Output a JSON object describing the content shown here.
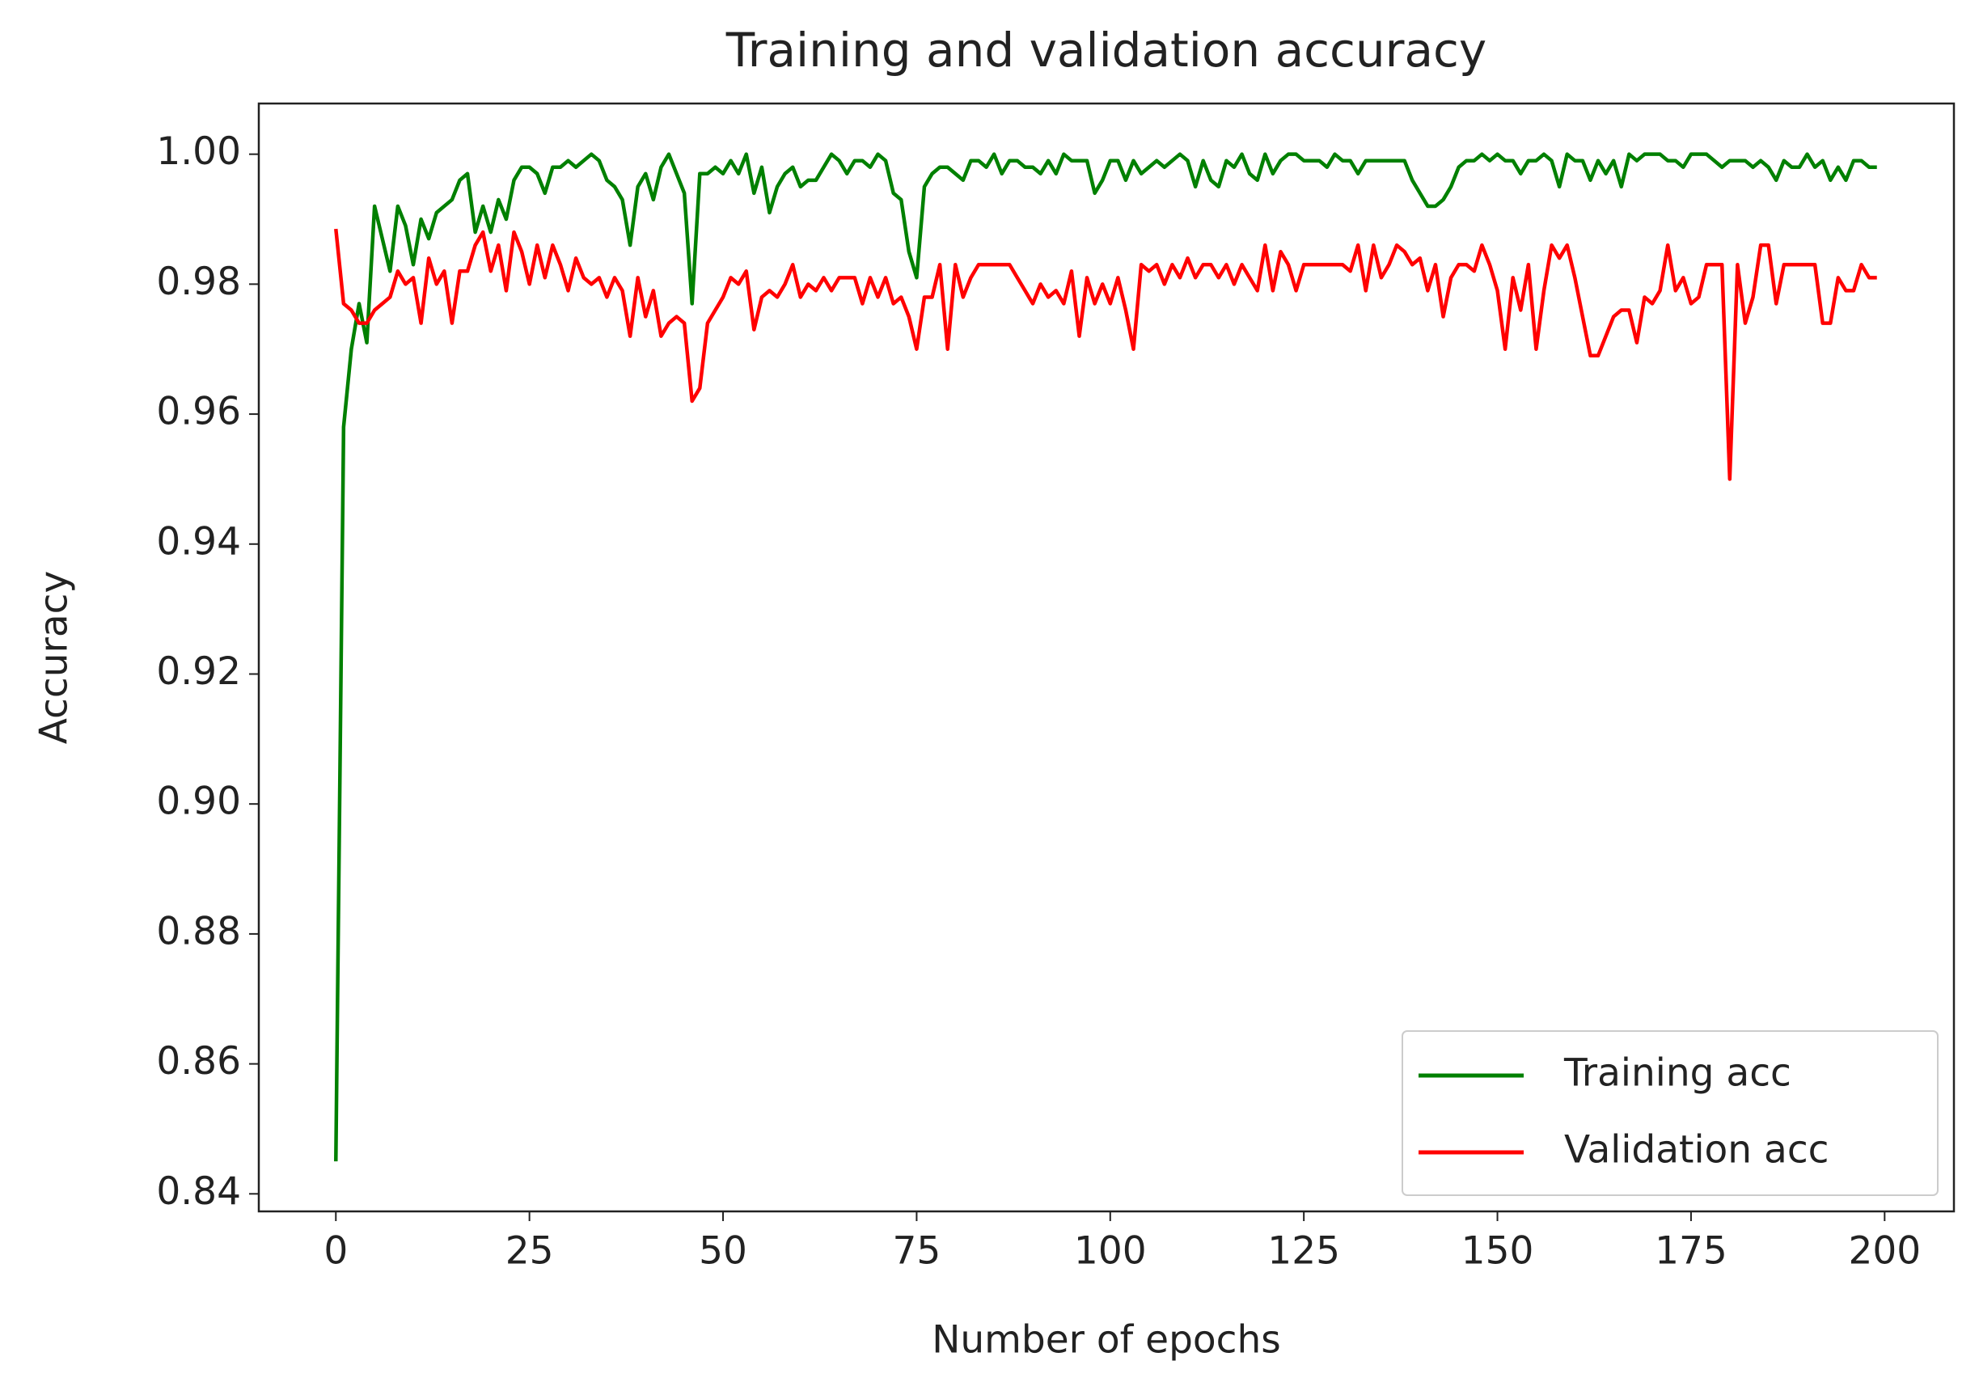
{
  "chart_data": {
    "type": "line",
    "title": "Training and validation accuracy",
    "x_label": "Number of epochs",
    "y_label": "Accuracy",
    "x": [
      0,
      1,
      2,
      3,
      4,
      5,
      6,
      7,
      8,
      9,
      10,
      11,
      12,
      13,
      14,
      15,
      16,
      17,
      18,
      19,
      20,
      21,
      22,
      23,
      24,
      25,
      26,
      27,
      28,
      29,
      30,
      31,
      32,
      33,
      34,
      35,
      36,
      37,
      38,
      39,
      40,
      41,
      42,
      43,
      44,
      45,
      46,
      47,
      48,
      49,
      50,
      51,
      52,
      53,
      54,
      55,
      56,
      57,
      58,
      59,
      60,
      61,
      62,
      63,
      64,
      65,
      66,
      67,
      68,
      69,
      70,
      71,
      72,
      73,
      74,
      75,
      76,
      77,
      78,
      79,
      80,
      81,
      82,
      83,
      84,
      85,
      86,
      87,
      88,
      89,
      90,
      91,
      92,
      93,
      94,
      95,
      96,
      97,
      98,
      99,
      100,
      101,
      102,
      103,
      104,
      105,
      106,
      107,
      108,
      109,
      110,
      111,
      112,
      113,
      114,
      115,
      116,
      117,
      118,
      119,
      120,
      121,
      122,
      123,
      124,
      125,
      126,
      127,
      128,
      129,
      130,
      131,
      132,
      133,
      134,
      135,
      136,
      137,
      138,
      139,
      140,
      141,
      142,
      143,
      144,
      145,
      146,
      147,
      148,
      149,
      150,
      151,
      152,
      153,
      154,
      155,
      156,
      157,
      158,
      159,
      160,
      161,
      162,
      163,
      164,
      165,
      166,
      167,
      168,
      169,
      170,
      171,
      172,
      173,
      174,
      175,
      176,
      177,
      178,
      179,
      180,
      181,
      182,
      183,
      184,
      185,
      186,
      187,
      188,
      189,
      190,
      191,
      192,
      193,
      194,
      195,
      196,
      197,
      198,
      199
    ],
    "series": [
      {
        "name": "Training acc",
        "color": "#008000",
        "values": [
          0.845,
          0.958,
          0.97,
          0.977,
          0.971,
          0.992,
          0.987,
          0.982,
          0.992,
          0.989,
          0.983,
          0.99,
          0.987,
          0.991,
          0.992,
          0.993,
          0.996,
          0.997,
          0.988,
          0.992,
          0.988,
          0.993,
          0.99,
          0.996,
          0.998,
          0.998,
          0.997,
          0.994,
          0.998,
          0.998,
          0.999,
          0.998,
          0.999,
          1.0,
          0.999,
          0.996,
          0.995,
          0.993,
          0.986,
          0.995,
          0.997,
          0.993,
          0.998,
          1.0,
          0.997,
          0.994,
          0.977,
          0.997,
          0.997,
          0.998,
          0.997,
          0.999,
          0.997,
          1.0,
          0.994,
          0.998,
          0.991,
          0.995,
          0.997,
          0.998,
          0.995,
          0.996,
          0.996,
          0.998,
          1.0,
          0.999,
          0.997,
          0.999,
          0.999,
          0.998,
          1.0,
          0.999,
          0.994,
          0.993,
          0.985,
          0.981,
          0.995,
          0.997,
          0.998,
          0.998,
          0.997,
          0.996,
          0.999,
          0.999,
          0.998,
          1.0,
          0.997,
          0.999,
          0.999,
          0.998,
          0.998,
          0.997,
          0.999,
          0.997,
          1.0,
          0.999,
          0.999,
          0.999,
          0.994,
          0.996,
          0.999,
          0.999,
          0.996,
          0.999,
          0.997,
          0.998,
          0.999,
          0.998,
          0.999,
          1.0,
          0.999,
          0.995,
          0.999,
          0.996,
          0.995,
          0.999,
          0.998,
          1.0,
          0.997,
          0.996,
          1.0,
          0.997,
          0.999,
          1.0,
          1.0,
          0.999,
          0.999,
          0.999,
          0.998,
          1.0,
          0.999,
          0.999,
          0.997,
          0.999,
          0.999,
          0.999,
          0.999,
          0.999,
          0.999,
          0.996,
          0.994,
          0.992,
          0.992,
          0.993,
          0.995,
          0.998,
          0.999,
          0.999,
          1.0,
          0.999,
          1.0,
          0.999,
          0.999,
          0.997,
          0.999,
          0.999,
          1.0,
          0.999,
          0.995,
          1.0,
          0.999,
          0.999,
          0.996,
          0.999,
          0.997,
          0.999,
          0.995,
          1.0,
          0.999,
          1.0,
          1.0,
          1.0,
          0.999,
          0.999,
          0.998,
          1.0,
          1.0,
          1.0,
          0.999,
          0.998,
          0.999,
          0.999,
          0.999,
          0.998,
          0.999,
          0.998,
          0.996,
          0.999,
          0.998,
          0.998,
          1.0,
          0.998,
          0.999,
          0.996,
          0.998,
          0.996,
          0.999,
          0.999,
          0.998,
          0.998
        ]
      },
      {
        "name": "Validation acc",
        "color": "#ff0000",
        "values": [
          0.9885,
          0.977,
          0.976,
          0.974,
          0.974,
          0.976,
          0.977,
          0.978,
          0.982,
          0.98,
          0.981,
          0.974,
          0.984,
          0.98,
          0.982,
          0.974,
          0.982,
          0.982,
          0.986,
          0.988,
          0.982,
          0.986,
          0.979,
          0.988,
          0.985,
          0.98,
          0.986,
          0.981,
          0.986,
          0.983,
          0.979,
          0.984,
          0.981,
          0.98,
          0.981,
          0.978,
          0.981,
          0.979,
          0.972,
          0.981,
          0.975,
          0.979,
          0.972,
          0.974,
          0.975,
          0.974,
          0.962,
          0.964,
          0.974,
          0.976,
          0.978,
          0.981,
          0.98,
          0.982,
          0.973,
          0.978,
          0.979,
          0.978,
          0.98,
          0.983,
          0.978,
          0.98,
          0.979,
          0.981,
          0.979,
          0.981,
          0.981,
          0.981,
          0.977,
          0.981,
          0.978,
          0.981,
          0.977,
          0.978,
          0.975,
          0.97,
          0.978,
          0.978,
          0.983,
          0.97,
          0.983,
          0.978,
          0.981,
          0.983,
          0.983,
          0.983,
          0.983,
          0.983,
          0.981,
          0.979,
          0.977,
          0.98,
          0.978,
          0.979,
          0.977,
          0.982,
          0.972,
          0.981,
          0.977,
          0.98,
          0.977,
          0.981,
          0.976,
          0.97,
          0.983,
          0.982,
          0.983,
          0.98,
          0.983,
          0.981,
          0.984,
          0.981,
          0.983,
          0.983,
          0.981,
          0.983,
          0.98,
          0.983,
          0.981,
          0.979,
          0.986,
          0.979,
          0.985,
          0.983,
          0.979,
          0.983,
          0.983,
          0.983,
          0.983,
          0.983,
          0.983,
          0.982,
          0.986,
          0.979,
          0.986,
          0.981,
          0.983,
          0.986,
          0.985,
          0.983,
          0.984,
          0.979,
          0.983,
          0.975,
          0.981,
          0.983,
          0.983,
          0.982,
          0.986,
          0.983,
          0.979,
          0.97,
          0.981,
          0.976,
          0.983,
          0.97,
          0.979,
          0.986,
          0.984,
          0.986,
          0.981,
          0.975,
          0.969,
          0.969,
          0.972,
          0.975,
          0.976,
          0.976,
          0.971,
          0.978,
          0.977,
          0.979,
          0.986,
          0.979,
          0.981,
          0.977,
          0.978,
          0.983,
          0.983,
          0.983,
          0.95,
          0.983,
          0.974,
          0.978,
          0.986,
          0.986,
          0.977,
          0.983,
          0.983,
          0.983,
          0.983,
          0.983,
          0.974,
          0.974,
          0.981,
          0.979,
          0.979,
          0.983,
          0.981,
          0.981
        ]
      }
    ],
    "xlim": [
      -9.95,
      208.95
    ],
    "xticks": [
      0,
      25,
      50,
      75,
      100,
      125,
      150,
      175,
      200
    ],
    "ylim": [
      0.8373,
      1.0078
    ],
    "yticks": [
      0.84,
      0.86,
      0.88,
      {
        "value": 0.9,
        "label": "0.90"
      },
      0.92,
      0.94,
      0.96,
      0.98,
      {
        "value": 1.0,
        "label": "1.00"
      }
    ],
    "legend": "lower right",
    "grid": false
  }
}
